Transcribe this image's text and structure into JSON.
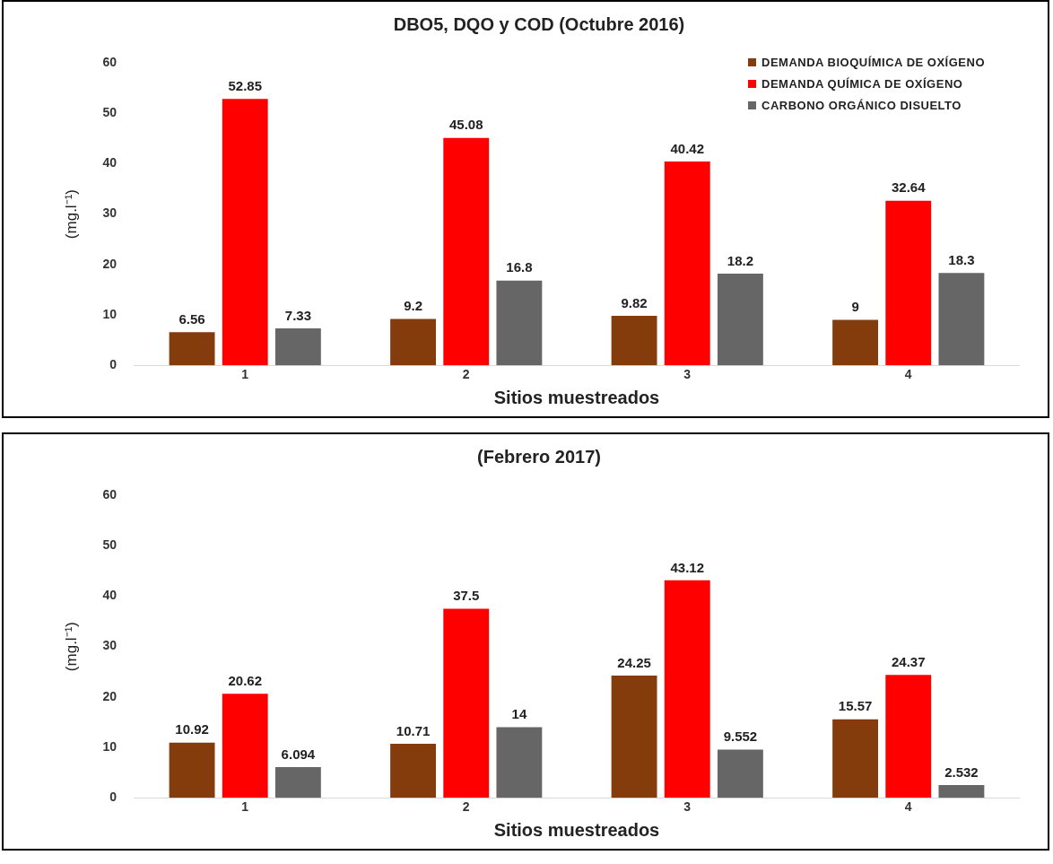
{
  "chart_data": [
    {
      "type": "bar",
      "title": "DBO5, DQO y COD (Octubre 2016)",
      "xlabel": "Sitios muestreados",
      "ylabel": "(mg.l⁻¹)",
      "categories": [
        "1",
        "2",
        "3",
        "4"
      ],
      "series": [
        {
          "name": "DEMANDA BIOQUÍMICA DE OXÍGENO",
          "color": "#843c0c",
          "values": [
            6.56,
            9.2,
            9.82,
            9
          ]
        },
        {
          "name": "DEMANDA QUÍMICA DE OXÍGENO",
          "color": "#ff0000",
          "values": [
            52.85,
            45.08,
            40.42,
            32.64
          ]
        },
        {
          "name": "CARBONO ORGÁNICO DISUELTO",
          "color": "#666666",
          "values": [
            7.33,
            16.8,
            18.2,
            18.3
          ]
        }
      ],
      "ylim": [
        0,
        60
      ],
      "yticks": [
        0,
        10,
        20,
        30,
        40,
        50,
        60
      ],
      "grid": false,
      "legend": "top right",
      "data_labels": true
    },
    {
      "type": "bar",
      "title": "(Febrero 2017)",
      "xlabel": "Sitios muestreados",
      "ylabel": "(mg.l⁻¹)",
      "categories": [
        "1",
        "2",
        "3",
        "4"
      ],
      "series": [
        {
          "color": "#843c0c",
          "values": [
            10.92,
            10.71,
            24.25,
            15.57
          ]
        },
        {
          "color": "#ff0000",
          "values": [
            20.62,
            37.5,
            43.12,
            24.37
          ]
        },
        {
          "color": "#666666",
          "values": [
            6.094,
            14,
            9.552,
            2.532
          ]
        }
      ],
      "ylim": [
        0,
        60
      ],
      "yticks": [
        0,
        10,
        20,
        30,
        40,
        50,
        60
      ],
      "grid": false,
      "data_labels": true
    }
  ]
}
